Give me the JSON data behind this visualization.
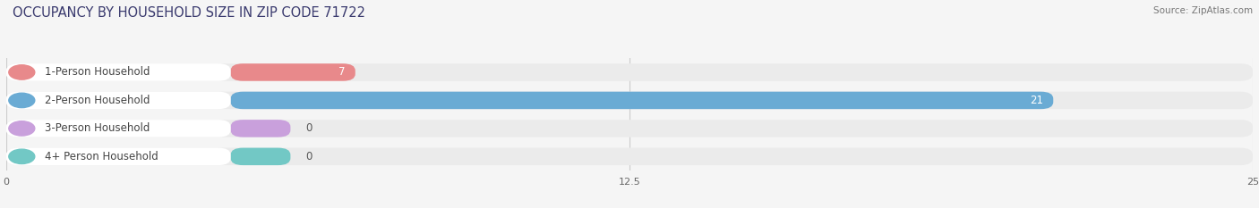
{
  "title": "OCCUPANCY BY HOUSEHOLD SIZE IN ZIP CODE 71722",
  "source": "Source: ZipAtlas.com",
  "categories": [
    "1-Person Household",
    "2-Person Household",
    "3-Person Household",
    "4+ Person Household"
  ],
  "values": [
    7,
    21,
    0,
    0
  ],
  "bar_colors": [
    "#e8898b",
    "#6aabd4",
    "#c9a0dc",
    "#72c8c5"
  ],
  "background_color": "#f5f5f5",
  "bar_background_color": "#ebebeb",
  "white_label_color": "#ffffff",
  "xlim": [
    0,
    25
  ],
  "xticks": [
    0,
    12.5,
    25
  ],
  "label_fontsize": 8.5,
  "value_fontsize": 8.5,
  "title_fontsize": 10.5
}
